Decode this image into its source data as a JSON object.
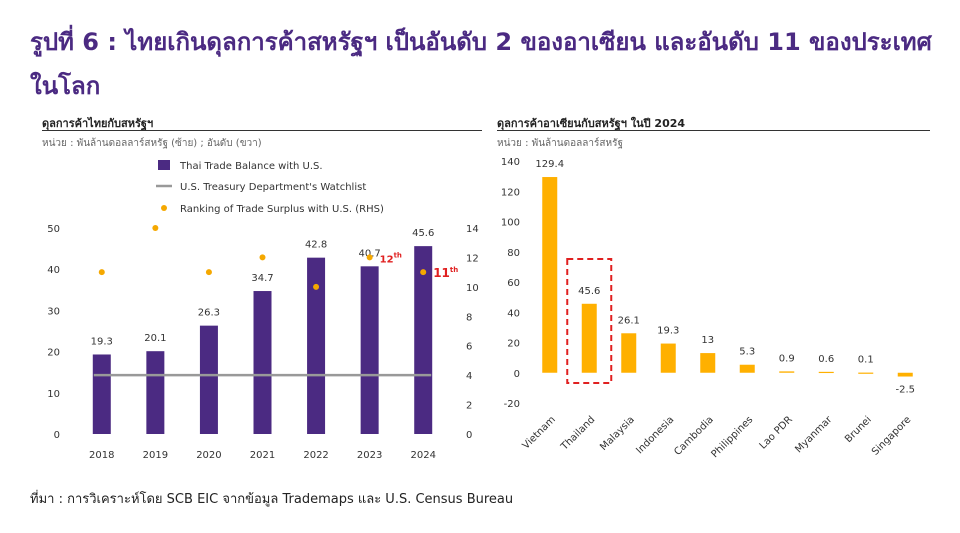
{
  "title_line1": "รูปที่ 6 : ไทยเกินดุลการค้าสหรัฐฯ เป็นอันดับ 2 ของอาเซียน และอันดับ 11 ของประเทศ",
  "title_line2": "ในโลก",
  "source": "ที่มา : การวิเคราะห์โดย SCB EIC จากข้อมูล Trademaps และ U.S. Census Bureau",
  "left_panel": {
    "title": "ดุลการค้าไทยกับสหรัฐฯ",
    "unit": "หน่วย : พันล้านดอลลาร์สหรัฐ (ซ้าย) ; อันดับ (ขวา)"
  },
  "right_panel": {
    "title": "ดุลการค้าอาเซียนกับสหรัฐฯ ในปี 2024",
    "unit": "หน่วย : พันล้านดอลลาร์สหรัฐ"
  },
  "colors": {
    "bar_purple": "#4b2a82",
    "watchlist_gray": "#999999",
    "dot_orange": "#f5a800",
    "bar_orange": "#ffb000",
    "highlight_red": "#e02020"
  },
  "chart_data": [
    {
      "type": "bar",
      "categories": [
        "2018",
        "2019",
        "2020",
        "2021",
        "2022",
        "2023",
        "2024"
      ],
      "series": [
        {
          "name": "Thai Trade Balance with U.S.",
          "type": "bar",
          "axis": "left",
          "values": [
            19.3,
            20.1,
            26.3,
            34.7,
            42.8,
            40.7,
            45.6
          ],
          "labels": [
            "19.3",
            "20.1",
            "26.3",
            "34.7",
            "42.8",
            "40.7",
            "45.6"
          ]
        },
        {
          "name": "U.S. Treasury Department's Watchlist",
          "type": "line",
          "axis": "right",
          "values": [
            4,
            4,
            4,
            4,
            4,
            4,
            4
          ]
        },
        {
          "name": "Ranking of Trade Surplus with U.S. (RHS)",
          "type": "scatter",
          "axis": "right",
          "values": [
            11,
            14,
            11,
            12,
            10,
            12,
            11
          ]
        }
      ],
      "annotations": [
        {
          "category": "2023",
          "text": "12",
          "sup": "th"
        },
        {
          "category": "2024",
          "text": "11",
          "sup": "th"
        }
      ],
      "ylim": [
        0,
        50
      ],
      "yticks": [
        0,
        10,
        20,
        30,
        40,
        50
      ],
      "y2lim": [
        0,
        14
      ],
      "y2ticks": [
        0,
        2,
        4,
        6,
        8,
        10,
        12,
        14
      ],
      "legend_position": "top-left"
    },
    {
      "type": "bar",
      "categories": [
        "Vietnam",
        "Thailand",
        "Malaysia",
        "Indonesia",
        "Cambodia",
        "Philippines",
        "Lao PDR",
        "Myanmar",
        "Brunei",
        "Singapore"
      ],
      "values": [
        129.4,
        45.6,
        26.1,
        19.3,
        13,
        5.3,
        0.9,
        0.6,
        0.1,
        -2.5
      ],
      "labels": [
        "129.4",
        "45.6",
        "26.1",
        "19.3",
        "13",
        "5.3",
        "0.9",
        "0.6",
        "0.1",
        "-2.5"
      ],
      "highlight": "Thailand",
      "ylim": [
        -20,
        140
      ],
      "yticks": [
        -20,
        0,
        20,
        40,
        60,
        80,
        100,
        120,
        140
      ]
    }
  ]
}
